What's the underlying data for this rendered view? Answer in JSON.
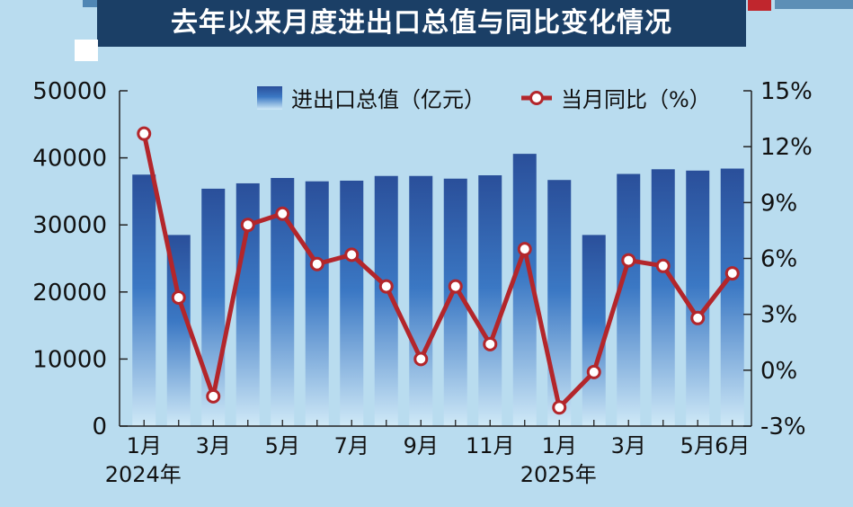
{
  "header": {
    "title": "去年以来月度进出口总值与同比变化情况"
  },
  "colors": {
    "title_bg": "#1b3f66",
    "bar_top": "#2a4f9a",
    "bar_bottom": "#cfe9f7",
    "line": "#b3262b",
    "marker_fill": "#ffffff",
    "axis": "#222222"
  },
  "chart_data": {
    "type": "bar",
    "categories": [
      "2024-01",
      "2024-02",
      "2024-03",
      "2024-04",
      "2024-05",
      "2024-06",
      "2024-07",
      "2024-08",
      "2024-09",
      "2024-10",
      "2024-11",
      "2024-12",
      "2025-01",
      "2025-02",
      "2025-03",
      "2025-04",
      "2025-05",
      "2025-06"
    ],
    "x_tick_labels": [
      "1月",
      "",
      "3月",
      "",
      "5月",
      "",
      "7月",
      "",
      "9月",
      "",
      "11月",
      "",
      "1月",
      "",
      "3月",
      "",
      "5月",
      "6月"
    ],
    "year_labels": [
      {
        "index": 0,
        "label": "2024年"
      },
      {
        "index": 12,
        "label": "2025年"
      }
    ],
    "series": [
      {
        "name": "进出口总值（亿元）",
        "type": "bar",
        "axis": "left",
        "values": [
          37500,
          28500,
          35400,
          36200,
          37000,
          36500,
          36600,
          37300,
          37300,
          36900,
          37400,
          40600,
          36700,
          28500,
          37600,
          38300,
          38100,
          38400
        ]
      },
      {
        "name": "当月同比（%）",
        "type": "line",
        "axis": "right",
        "values": [
          12.7,
          3.9,
          -1.4,
          7.8,
          8.4,
          5.7,
          6.2,
          4.5,
          0.6,
          4.5,
          1.4,
          6.5,
          -2.0,
          -0.1,
          5.9,
          5.6,
          2.8,
          5.2
        ]
      }
    ],
    "y_left": {
      "lim": [
        0,
        50000
      ],
      "ticks": [
        0,
        10000,
        20000,
        30000,
        40000,
        50000
      ],
      "tick_labels": [
        "0",
        "10000",
        "20000",
        "30000",
        "40000",
        "50000"
      ]
    },
    "y_right": {
      "lim": [
        -3,
        15
      ],
      "ticks": [
        -3,
        0,
        3,
        6,
        9,
        12,
        15
      ],
      "tick_labels": [
        "-3%",
        "0%",
        "3%",
        "6%",
        "9%",
        "12%",
        "15%"
      ]
    },
    "legend": {
      "placement": "top"
    },
    "grid": false
  }
}
